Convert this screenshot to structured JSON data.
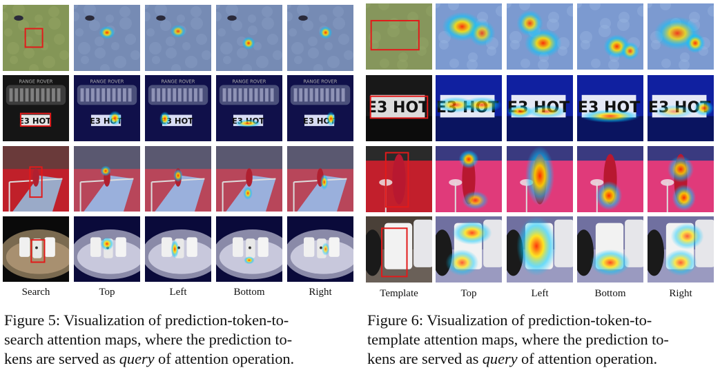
{
  "figure5": {
    "columns": [
      "Search",
      "Top",
      "Left",
      "Bottom",
      "Right"
    ],
    "caption_line1": "Figure 5: Visualization of prediction-token-to-",
    "caption_line2": "search attention maps, where the prediction to-",
    "caption_line3_pre": "kens are served as ",
    "caption_query": "query",
    "caption_line3_post": " of attention operation."
  },
  "figure6": {
    "columns": [
      "Template",
      "Top",
      "Left",
      "Bottom",
      "Right"
    ],
    "caption_line1": "Figure 6: Visualization of prediction-token-to-",
    "caption_line2": "template attention maps, where the prediction to-",
    "caption_line3_pre": "kens are served as ",
    "caption_query": "query",
    "caption_line3_post": " of attention operation."
  },
  "plate_text": "E3 HOT",
  "grille_text": "RANGE ROVER",
  "colors": {
    "box": "#e21a1a",
    "heat_hot": "#ff2a00",
    "heat_mid": "#ffe200",
    "heat_cool": "#00c8ff",
    "heat_base": "#1a1aa8"
  }
}
